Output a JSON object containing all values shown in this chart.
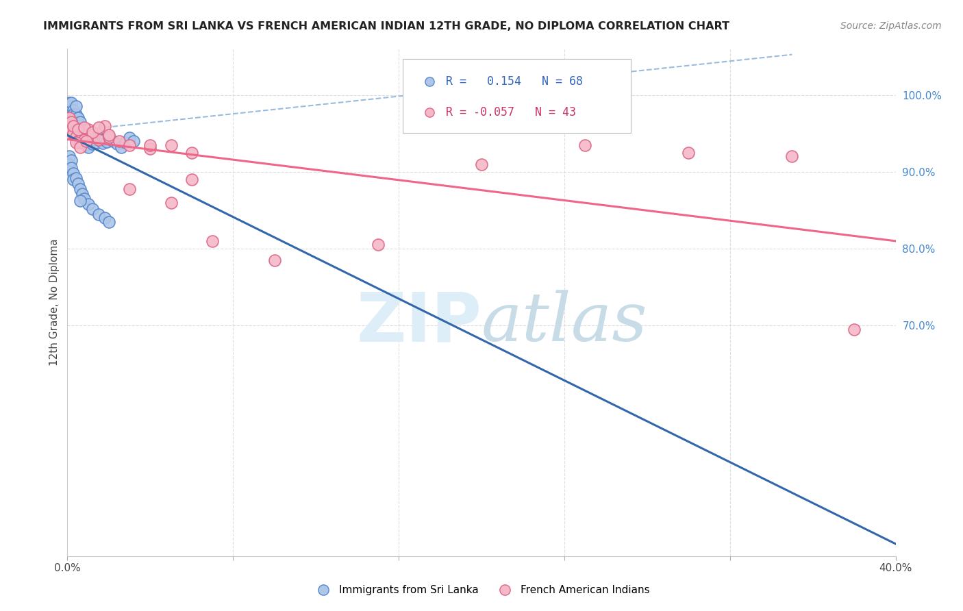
{
  "title": "IMMIGRANTS FROM SRI LANKA VS FRENCH AMERICAN INDIAN 12TH GRADE, NO DIPLOMA CORRELATION CHART",
  "source": "Source: ZipAtlas.com",
  "ylabel": "12th Grade, No Diploma",
  "x_min": 0.0,
  "x_max": 0.4,
  "y_min": 0.4,
  "y_max": 1.06,
  "y_ticks_right": [
    1.0,
    0.9,
    0.8,
    0.7
  ],
  "y_tick_labels_right": [
    "100.0%",
    "90.0%",
    "80.0%",
    "70.0%"
  ],
  "sri_lanka_R": 0.154,
  "sri_lanka_N": 68,
  "french_R": -0.057,
  "french_N": 43,
  "sri_lanka_color": "#aec6e8",
  "sri_lanka_edge": "#5588cc",
  "french_color": "#f5b8c8",
  "french_edge": "#dd6688",
  "sri_lanka_line_color": "#3366aa",
  "french_line_color": "#ee6688",
  "dashed_line_color": "#99bbdd",
  "watermark_color": "#ddeef8",
  "grid_color": "#dddddd",
  "title_fontsize": 11.5,
  "source_fontsize": 10,
  "axis_label_fontsize": 11,
  "tick_fontsize": 11,
  "legend_fontsize": 12,
  "sl_x": [
    0.0005,
    0.001,
    0.001,
    0.001,
    0.0015,
    0.002,
    0.002,
    0.002,
    0.0025,
    0.003,
    0.003,
    0.003,
    0.003,
    0.0035,
    0.004,
    0.004,
    0.004,
    0.004,
    0.0045,
    0.005,
    0.005,
    0.005,
    0.0055,
    0.006,
    0.006,
    0.006,
    0.007,
    0.007,
    0.008,
    0.008,
    0.009,
    0.009,
    0.01,
    0.01,
    0.011,
    0.012,
    0.013,
    0.014,
    0.015,
    0.016,
    0.017,
    0.018,
    0.019,
    0.02,
    0.022,
    0.024,
    0.026,
    0.028,
    0.03,
    0.032,
    0.001,
    0.001,
    0.002,
    0.002,
    0.003,
    0.003,
    0.004,
    0.005,
    0.006,
    0.007,
    0.008,
    0.01,
    0.012,
    0.015,
    0.018,
    0.02,
    0.006,
    0.003
  ],
  "sl_y": [
    0.97,
    0.99,
    0.98,
    0.975,
    0.985,
    0.97,
    0.98,
    0.99,
    0.975,
    0.96,
    0.97,
    0.98,
    0.975,
    0.965,
    0.955,
    0.965,
    0.975,
    0.985,
    0.96,
    0.95,
    0.96,
    0.97,
    0.955,
    0.945,
    0.955,
    0.965,
    0.94,
    0.952,
    0.938,
    0.948,
    0.935,
    0.945,
    0.932,
    0.943,
    0.939,
    0.936,
    0.942,
    0.938,
    0.944,
    0.941,
    0.937,
    0.943,
    0.939,
    0.945,
    0.94,
    0.936,
    0.932,
    0.938,
    0.944,
    0.94,
    0.92,
    0.91,
    0.915,
    0.905,
    0.898,
    0.89,
    0.892,
    0.885,
    0.878,
    0.871,
    0.865,
    0.858,
    0.852,
    0.845,
    0.84,
    0.835,
    0.862,
    0.95
  ],
  "fr_x": [
    0.001,
    0.001,
    0.002,
    0.002,
    0.003,
    0.004,
    0.005,
    0.006,
    0.007,
    0.008,
    0.01,
    0.012,
    0.015,
    0.018,
    0.02,
    0.025,
    0.03,
    0.04,
    0.05,
    0.06,
    0.001,
    0.002,
    0.003,
    0.005,
    0.008,
    0.012,
    0.015,
    0.02,
    0.03,
    0.05,
    0.07,
    0.1,
    0.15,
    0.2,
    0.25,
    0.3,
    0.35,
    0.38,
    0.004,
    0.006,
    0.009,
    0.04,
    0.06
  ],
  "fr_y": [
    0.96,
    0.95,
    0.955,
    0.965,
    0.95,
    0.945,
    0.94,
    0.938,
    0.945,
    0.942,
    0.955,
    0.948,
    0.942,
    0.96,
    0.945,
    0.94,
    0.935,
    0.93,
    0.935,
    0.925,
    0.97,
    0.965,
    0.96,
    0.955,
    0.958,
    0.952,
    0.958,
    0.948,
    0.878,
    0.86,
    0.81,
    0.785,
    0.805,
    0.91,
    0.935,
    0.925,
    0.92,
    0.695,
    0.938,
    0.932,
    0.94,
    0.935,
    0.89
  ]
}
